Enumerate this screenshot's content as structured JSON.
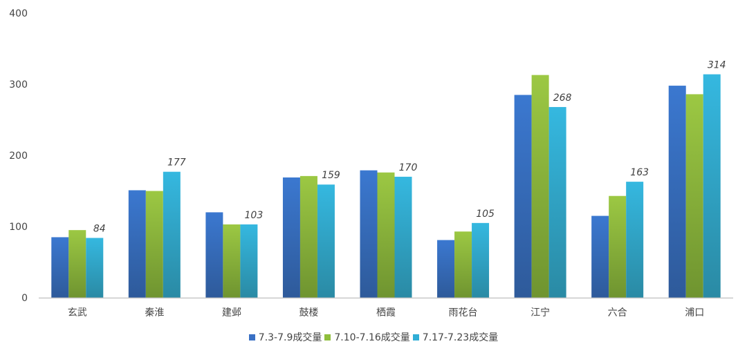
{
  "chart_data": {
    "type": "bar",
    "title": "",
    "xlabel": "",
    "ylabel": "",
    "ylim": [
      0,
      400
    ],
    "yticks": [
      0,
      100,
      200,
      300,
      400
    ],
    "grid": false,
    "legend_position": "bottom",
    "categories": [
      "玄武",
      "秦淮",
      "建邺",
      "鼓楼",
      "栖霞",
      "雨花台",
      "江宁",
      "六合",
      "浦口"
    ],
    "series": [
      {
        "name": "7.3-7.9成交量",
        "color": "#3a70c4",
        "values": [
          85,
          151,
          120,
          169,
          179,
          81,
          285,
          115,
          298
        ],
        "data_labels": false
      },
      {
        "name": "7.10-7.16成交量",
        "color": "#8fbe3c",
        "values": [
          95,
          150,
          103,
          171,
          176,
          93,
          313,
          143,
          286
        ],
        "data_labels": false
      },
      {
        "name": "7.17-7.23成交量",
        "color": "#30aed6",
        "values": [
          84,
          177,
          103,
          159,
          170,
          105,
          268,
          163,
          314
        ],
        "data_labels": true
      }
    ]
  }
}
